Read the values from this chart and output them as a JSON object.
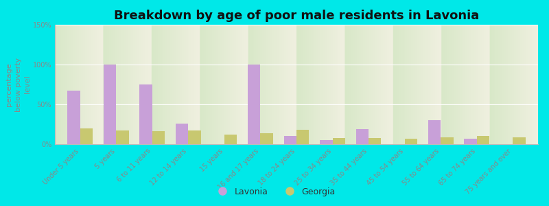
{
  "title": "Breakdown by age of poor male residents in Lavonia",
  "ylabel": "percentage\nbelow poverty\nlevel",
  "categories": [
    "Under 5 years",
    "5 years",
    "6 to 11 years",
    "12 to 14 years",
    "15 years",
    "16 and 17 years",
    "18 to 24 years",
    "25 to 34 years",
    "35 to 44 years",
    "45 to 54 years",
    "55 to 64 years",
    "65 to 74 years",
    "75 years and over"
  ],
  "lavonia": [
    67,
    100,
    75,
    26,
    0,
    100,
    10,
    5,
    19,
    0,
    30,
    7,
    0
  ],
  "georgia": [
    20,
    17,
    16,
    17,
    12,
    14,
    18,
    8,
    8,
    7,
    9,
    10,
    9
  ],
  "lavonia_color": "#c8a0d8",
  "georgia_color": "#c8c870",
  "bg_outer": "#00e8e8",
  "bg_plot_top": "#d8e8c8",
  "bg_plot_bottom": "#f0f0e0",
  "ylim": [
    0,
    150
  ],
  "yticks": [
    0,
    50,
    100,
    150
  ],
  "ytick_labels": [
    "0%",
    "50%",
    "100%",
    "150%"
  ],
  "title_fontsize": 13,
  "axis_label_fontsize": 8,
  "tick_label_fontsize": 7,
  "legend_fontsize": 9,
  "bar_width": 0.35,
  "legend_text_color": "#333333",
  "tick_color": "#888888"
}
